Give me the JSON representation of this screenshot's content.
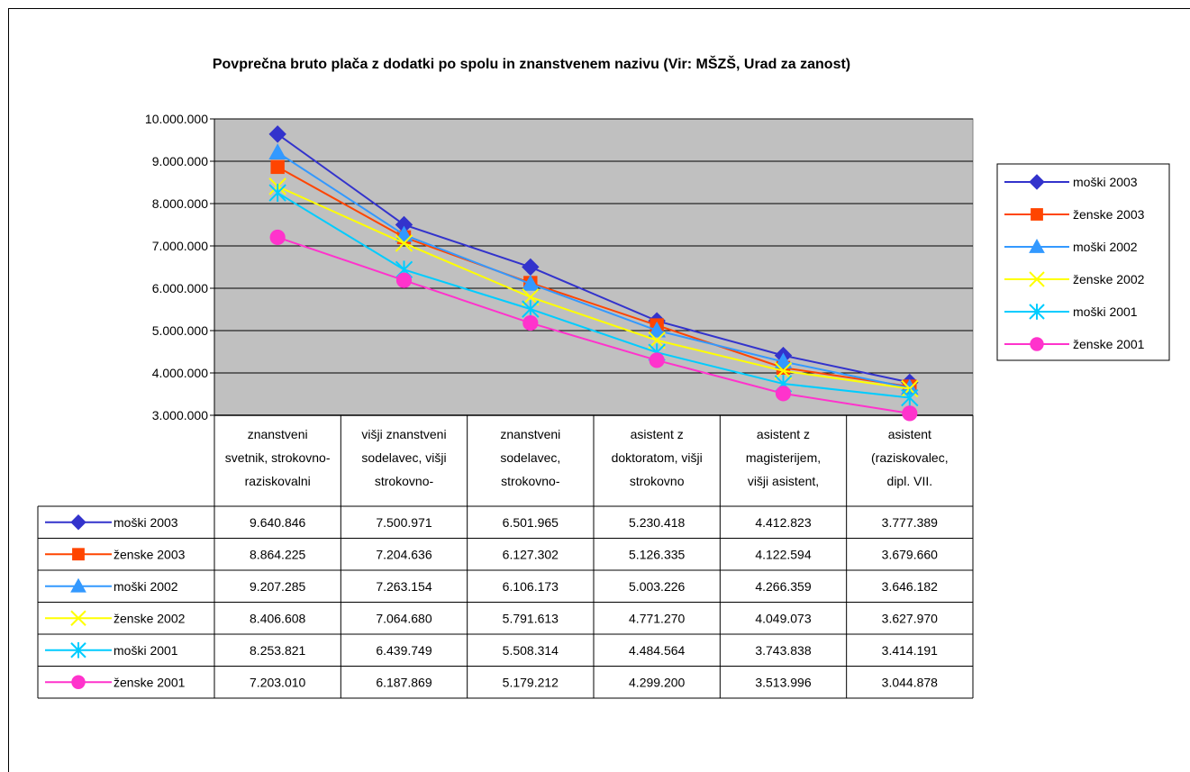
{
  "chart_data": {
    "type": "line",
    "title": "Povprečna bruto plača z dodatki po spolu in znanstvenem nazivu (Vir: MŠZŠ, Urad za zanost)",
    "xlabel": "",
    "ylabel": "",
    "ylim": [
      3000000,
      10000000
    ],
    "yticks": [
      "3.000.000",
      "4.000.000",
      "5.000.000",
      "6.000.000",
      "7.000.000",
      "8.000.000",
      "9.000.000",
      "10.000.000"
    ],
    "grid": true,
    "legend_position": "right",
    "categories": [
      [
        "znanstveni",
        "svetnik, strokovno-",
        "raziskovalni"
      ],
      [
        "višji znanstveni",
        "sodelavec, višji",
        "strokovno-"
      ],
      [
        "znanstveni",
        "sodelavec,",
        "strokovno-"
      ],
      [
        "asistent z",
        "doktoratom, višji",
        "strokovno"
      ],
      [
        "asistent z",
        "magisterijem,",
        "višji asistent,"
      ],
      [
        "asistent",
        "(raziskovalec,",
        "dipl. VII."
      ]
    ],
    "series": [
      {
        "name": "moški 2003",
        "color": "#3333CC",
        "marker": "diamond",
        "values": [
          9640846,
          7500971,
          6501965,
          5230418,
          4412823,
          3777389
        ],
        "labels": [
          "9.640.846",
          "7.500.971",
          "6.501.965",
          "5.230.418",
          "4.412.823",
          "3.777.389"
        ]
      },
      {
        "name": "ženske 2003",
        "color": "#FF4500",
        "marker": "square",
        "values": [
          8864225,
          7204636,
          6127302,
          5126335,
          4122594,
          3679660
        ],
        "labels": [
          "8.864.225",
          "7.204.636",
          "6.127.302",
          "5.126.335",
          "4.122.594",
          "3.679.660"
        ]
      },
      {
        "name": "moški 2002",
        "color": "#3399FF",
        "marker": "triangle",
        "values": [
          9207285,
          7263154,
          6106173,
          5003226,
          4266359,
          3646182
        ],
        "labels": [
          "9.207.285",
          "7.263.154",
          "6.106.173",
          "5.003.226",
          "4.266.359",
          "3.646.182"
        ]
      },
      {
        "name": "ženske 2002",
        "color": "#FFFF00",
        "marker": "x",
        "values": [
          8406608,
          7064680,
          5791613,
          4771270,
          4049073,
          3627970
        ],
        "labels": [
          "8.406.608",
          "7.064.680",
          "5.791.613",
          "4.771.270",
          "4.049.073",
          "3.627.970"
        ]
      },
      {
        "name": "moški 2001",
        "color": "#00CCFF",
        "marker": "asterisk",
        "values": [
          8253821,
          6439749,
          5508314,
          4484564,
          3743838,
          3414191
        ],
        "labels": [
          "8.253.821",
          "6.439.749",
          "5.508.314",
          "4.484.564",
          "3.743.838",
          "3.414.191"
        ]
      },
      {
        "name": "ženske 2001",
        "color": "#FF33CC",
        "marker": "circle",
        "values": [
          7203010,
          6187869,
          5179212,
          4299200,
          3513996,
          3044878
        ],
        "labels": [
          "7.203.010",
          "6.187.869",
          "5.179.212",
          "4.299.200",
          "3.513.996",
          "3.044.878"
        ]
      }
    ]
  },
  "colors": {
    "plot_background": "#C0C0C0",
    "gridline": "#000000"
  }
}
